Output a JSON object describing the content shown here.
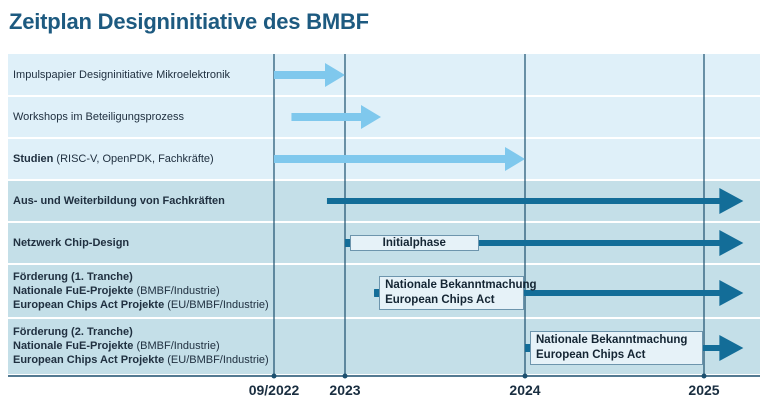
{
  "title": "Zeitplan Designinitiative des BMBF",
  "timeline": {
    "ticks": [
      {
        "label": "09/2022",
        "date": "2022-09-01"
      },
      {
        "label": "2023",
        "date": "2023-01-01"
      },
      {
        "label": "2024",
        "date": "2024-01-01"
      },
      {
        "label": "2025",
        "date": "2025-01-01"
      }
    ]
  },
  "rows": [
    {
      "lines": [
        [
          {
            "text": "Impulspapier Designinitiative Mikroelektronik",
            "bold": false
          }
        ]
      ],
      "bar": {
        "start": "2022-09-01",
        "end": "2023-01-01",
        "color": "#7fc8ed",
        "style": "light"
      }
    },
    {
      "lines": [
        [
          {
            "text": "Workshops im Beteiligungsprozess",
            "bold": false
          }
        ]
      ],
      "bar": {
        "start": "2022-10-01",
        "end": "2023-03-15",
        "color": "#7fc8ed",
        "style": "light"
      }
    },
    {
      "lines": [
        [
          {
            "text": "Studien",
            "bold": true
          },
          {
            "text": " (RISC-V, OpenPDK, Fachkräfte)",
            "bold": false
          }
        ]
      ],
      "bar": {
        "start": "2022-09-01",
        "end": "2024-01-01",
        "color": "#7fc8ed",
        "style": "light"
      }
    },
    {
      "lines": [
        [
          {
            "text": "Aus- und Weiterbildung von Fachkräften",
            "bold": true
          }
        ]
      ],
      "bar": {
        "start": "2022-12-01",
        "end": "2025-03-31",
        "color": "#136d98",
        "style": "dark"
      }
    },
    {
      "lines": [
        [
          {
            "text": "Netzwerk Chip-Design",
            "bold": true
          }
        ]
      ],
      "bar": {
        "start": "2023-01-01",
        "end": "2025-03-31",
        "color": "#136d98",
        "style": "dark"
      },
      "phase": {
        "lines": [
          "Initialphase"
        ],
        "start": "2023-01-01",
        "end": "2023-10-01"
      }
    },
    {
      "lines": [
        [
          {
            "text": "Förderung (1. Tranche)",
            "bold": true
          }
        ],
        [
          {
            "text": "Nationale FuE-Projekte",
            "bold": true
          },
          {
            "text": " (BMBF/Industrie)",
            "bold": false
          }
        ],
        [
          {
            "text": "European Chips Act Projekte",
            "bold": true
          },
          {
            "text": " (EU/BMBF/Industrie)",
            "bold": false
          }
        ]
      ],
      "bar": {
        "start": "2023-03-01",
        "end": "2025-03-31",
        "color": "#136d98",
        "style": "dark"
      },
      "phase": {
        "lines": [
          "Nationale Bekanntmachung",
          "European Chips Act"
        ],
        "start": "2023-03-01",
        "end": "2024-01-01"
      }
    },
    {
      "lines": [
        [
          {
            "text": "Förderung (2. Tranche)",
            "bold": true
          }
        ],
        [
          {
            "text": "Nationale FuE-Projekte",
            "bold": true
          },
          {
            "text": " (BMBF/Industrie)",
            "bold": false
          }
        ],
        [
          {
            "text": "European Chips Act Projekte",
            "bold": true
          },
          {
            "text": " (EU/BMBF/Industrie)",
            "bold": false
          }
        ]
      ],
      "bar": {
        "start": "2024-01-01",
        "end": "2025-03-31",
        "color": "#136d98",
        "style": "dark"
      },
      "phase": {
        "lines": [
          "Nationale Bekanntmachung",
          "European Chips Act"
        ],
        "start": "2024-01-01",
        "end": "2025-01-01"
      }
    }
  ],
  "colors": {
    "title": "#1d5a80",
    "row_light_bg": "#dff0f9",
    "row_dark_bg": "#c4dfe8",
    "gridline": "#1b4f6e",
    "light_arrow": "#7fc8ed",
    "dark_arrow": "#136d98"
  }
}
